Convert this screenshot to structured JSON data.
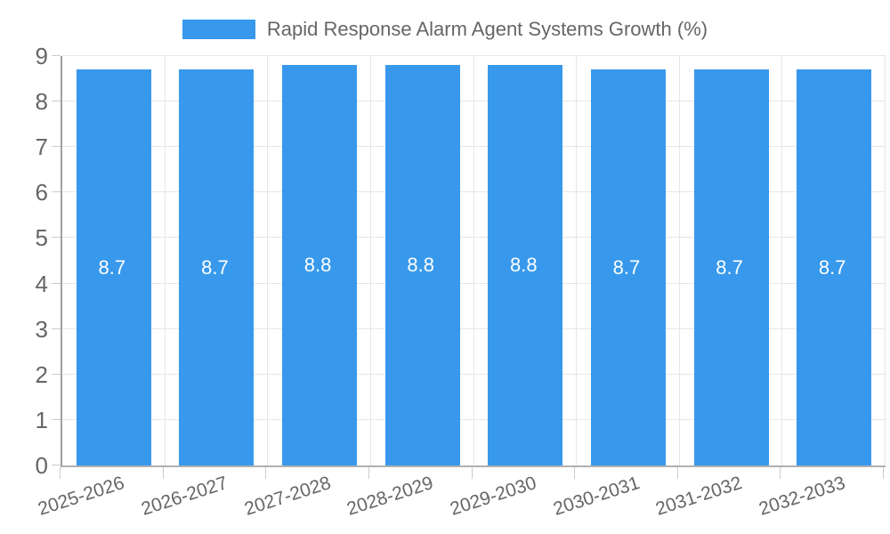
{
  "legend": {
    "label": "Rapid Response Alarm Agent Systems Growth (%)",
    "position": "top"
  },
  "chart_data": {
    "type": "bar",
    "title": "Rapid Response Alarm Agent Systems Growth (%)",
    "categories": [
      "2025-2026",
      "2026-2027",
      "2027-2028",
      "2028-2029",
      "2029-2030",
      "2030-2031",
      "2031-2032",
      "2032-2033"
    ],
    "values": [
      8.7,
      8.7,
      8.8,
      8.8,
      8.8,
      8.7,
      8.7,
      8.7
    ],
    "value_labels": [
      "8.7",
      "8.7",
      "8.8",
      "8.8",
      "8.8",
      "8.7",
      "8.7",
      "8.7"
    ],
    "xlabel": "",
    "ylabel": "",
    "ylim": [
      0,
      9
    ],
    "yticks": [
      0,
      1,
      2,
      3,
      4,
      5,
      6,
      7,
      8,
      9
    ],
    "grid": true,
    "legend_position": "top",
    "colors": {
      "bar": "#3899ec",
      "value_label": "#ffffff",
      "tick_text": "#666666",
      "gridline": "#e6e6e6",
      "axis_line": "#a0a0a0",
      "tick_mark": "#cccccc",
      "background": "#ffffff"
    }
  }
}
